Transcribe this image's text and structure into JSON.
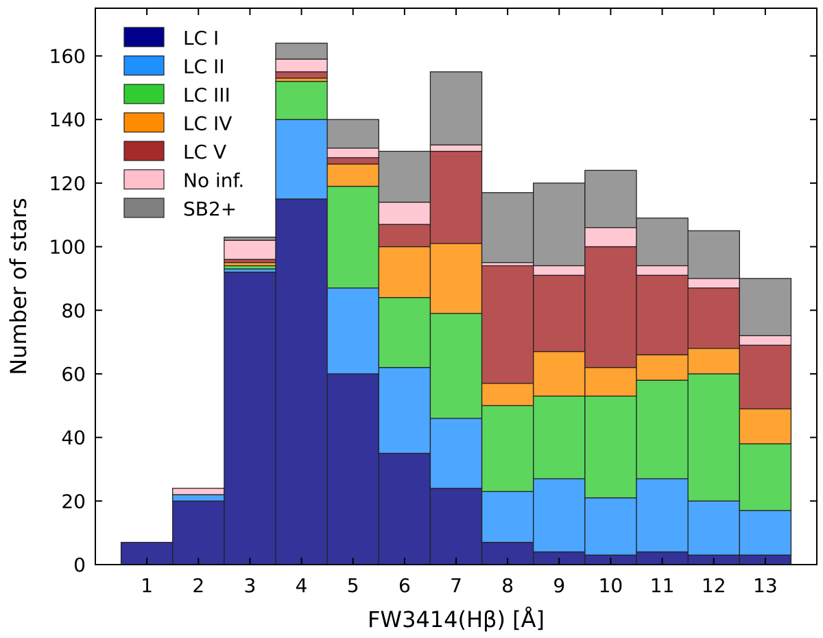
{
  "chart_data": {
    "type": "bar",
    "stacked": true,
    "categories": [
      "1",
      "2",
      "3",
      "4",
      "5",
      "6",
      "7",
      "8",
      "9",
      "10",
      "11",
      "12",
      "13"
    ],
    "xlabel": "FW3414(Hβ) [Å]",
    "ylabel": "Number of stars",
    "ylim": [
      0,
      175
    ],
    "yticks": [
      0,
      20,
      40,
      60,
      80,
      100,
      120,
      140,
      160
    ],
    "legend_position": "top-left",
    "grid": false,
    "series": [
      {
        "name": "LC I",
        "color": "#333399",
        "legend_color": "#00008b",
        "values": [
          7,
          20,
          92,
          115,
          60,
          35,
          24,
          7,
          4,
          3,
          4,
          3,
          3
        ]
      },
      {
        "name": "LC II",
        "color": "#4da6ff",
        "legend_color": "#1e90ff",
        "values": [
          0,
          2,
          1,
          25,
          27,
          27,
          22,
          16,
          23,
          18,
          23,
          17,
          14
        ]
      },
      {
        "name": "LC III",
        "color": "#5cd65c",
        "legend_color": "#32cd32",
        "values": [
          0,
          0,
          1,
          12,
          32,
          22,
          33,
          27,
          26,
          32,
          31,
          40,
          21
        ]
      },
      {
        "name": "LC IV",
        "color": "#ffa333",
        "legend_color": "#ff8c00",
        "values": [
          0,
          0,
          1,
          1,
          7,
          16,
          22,
          7,
          14,
          9,
          8,
          8,
          11
        ]
      },
      {
        "name": "LC V",
        "color": "#b85252",
        "legend_color": "#a52a2a",
        "values": [
          0,
          0,
          1,
          2,
          2,
          7,
          29,
          37,
          24,
          38,
          25,
          19,
          20
        ]
      },
      {
        "name": "No inf.",
        "color": "#ffc8d3",
        "legend_color": "#ffc0cb",
        "values": [
          0,
          2,
          6,
          4,
          3,
          7,
          2,
          1,
          3,
          6,
          3,
          3,
          3
        ]
      },
      {
        "name": "SB2+",
        "color": "#999999",
        "legend_color": "#808080",
        "values": [
          0,
          0,
          1,
          5,
          9,
          16,
          23,
          22,
          26,
          18,
          15,
          15,
          18
        ]
      }
    ]
  }
}
